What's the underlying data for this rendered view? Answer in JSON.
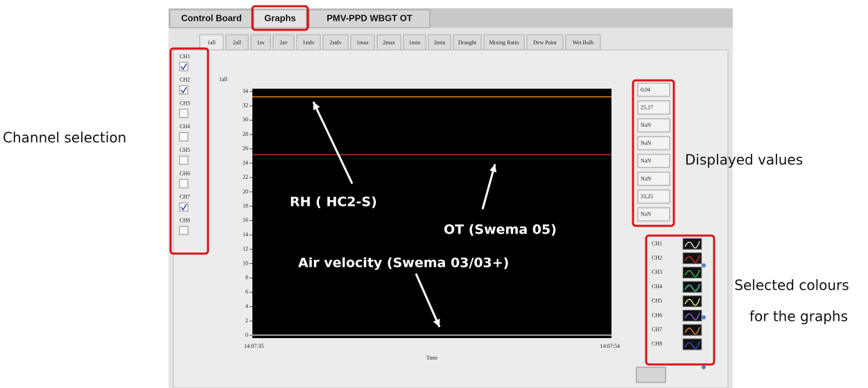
{
  "tabs": [
    "Control Board",
    "Graphs",
    "PMV-PPD WBGT OT"
  ],
  "sub_tabs": [
    "1all",
    "2all",
    "1av",
    "2av",
    "1stdv",
    "2stdv",
    "1max",
    "2max",
    "1min",
    "2min",
    "Draught",
    "Mixing Ratio",
    "Dew Point",
    "Wet Bulb"
  ],
  "graph": {
    "title": "1all",
    "ylim": [
      0,
      34
    ],
    "yticks": [
      0,
      2,
      4,
      6,
      8,
      10,
      12,
      14,
      16,
      18,
      20,
      22,
      24,
      26,
      28,
      30,
      32,
      34
    ],
    "x_labels": [
      "14:07:35",
      "14:07:54"
    ],
    "x_label": "Time"
  },
  "channels": [
    {
      "name": "CH1",
      "checked": true,
      "value": 0.04,
      "value_label": "0,04",
      "color": "#d8d8d8"
    },
    {
      "name": "CH2",
      "checked": true,
      "value": 25.17,
      "value_label": "25,17",
      "color": "#c0302c"
    },
    {
      "name": "CH3",
      "checked": false,
      "value": null,
      "value_label": "NaN",
      "color": "#2fbf3a"
    },
    {
      "name": "CH4",
      "checked": false,
      "value": null,
      "value_label": "NaN",
      "color": "#3fc9c0"
    },
    {
      "name": "CH5",
      "checked": false,
      "value": null,
      "value_label": "NaN",
      "color": "#e8e8a0"
    },
    {
      "name": "CH6",
      "checked": false,
      "value": null,
      "value_label": "NaN",
      "color": "#8a5ad0"
    },
    {
      "name": "CH7",
      "checked": true,
      "value": 33.25,
      "value_label": "33,25",
      "color": "#e08a2a"
    },
    {
      "name": "CH8",
      "checked": false,
      "value": null,
      "value_label": "NaN",
      "color": "#3a4ad8"
    }
  ],
  "annotations": {
    "channel_selection": "Channel selection",
    "displayed_values": "Displayed values",
    "selected_colours": [
      "Selected colours",
      "for the graphs"
    ],
    "rh": "RH ( HC2-S)",
    "ot": "OT (Swema 05)",
    "air_velocity": "Air velocity (Swema 03/03+)"
  }
}
